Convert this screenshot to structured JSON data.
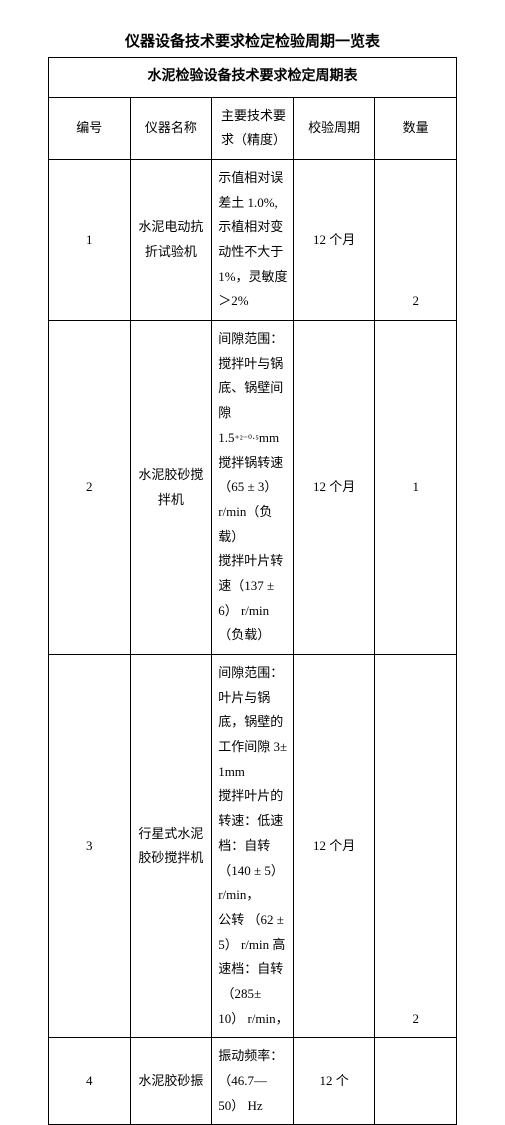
{
  "title_main": "仪器设备技术要求检定检验周期一览表",
  "title_sub": "水泥检验设备技术要求检定周期表",
  "headers": {
    "num": "编号",
    "name": "仪器名称",
    "req": "主要技术要求（精度）",
    "period": "校验周期",
    "qty": "数量"
  },
  "rows": [
    {
      "num": "1",
      "name": "水泥电动抗折试验机",
      "req": "示值相对误差土 1.0%,示植相对变动性不大于 1%，灵敏度＞2%",
      "period": "12 个月",
      "qty": "2"
    },
    {
      "num": "2",
      "name": "水泥胶砂搅拌机",
      "req_html": "间隙范围：搅拌叶与锅底、锅壁间隙 1.5<span class='sub'>⁺²⁻⁰·⁵</span>mm<br>搅拌锅转速（65 ± 3）r/min（负载）<br>搅拌叶片转速（137 ± 6） r/min（负载）",
      "period": "12 个月",
      "qty": "1"
    },
    {
      "num": "3",
      "name": "行星式水泥胶砂搅拌机",
      "req_html": "间隙范围：叶片与锅底，锅壁的工作间隙 3±  1mm<br>搅拌叶片的转速：低速档：自转 （140 ±  5）  r/min，<br>公转 （62 ±  5）  r/min 高速档：自转<br>&nbsp;（285±  10）  r/min，",
      "period": "12 个月",
      "qty": "2"
    },
    {
      "num": "4",
      "name": "水泥胶砂振",
      "req": "振动频率： （46.7— 50）  Hz",
      "period": "12 个",
      "qty": ""
    }
  ]
}
